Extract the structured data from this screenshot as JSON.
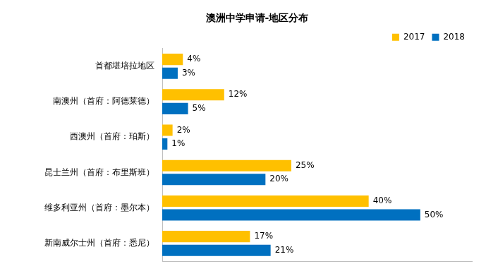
{
  "chart_data": {
    "type": "bar",
    "title": "澳洲中学申请-地区分布",
    "orientation": "horizontal",
    "categories": [
      "首都堪培拉地区",
      "南澳州（首府：阿德莱德）",
      "西澳州（首府：珀斯）",
      "昆士兰州（首府：布里斯班）",
      "维多利亚州（首府：墨尔本）",
      "新南威尔士州（首府：悉尼）"
    ],
    "series": [
      {
        "name": "2017",
        "color": "#FFC000",
        "values": [
          4,
          12,
          2,
          25,
          40,
          17
        ],
        "value_labels": [
          "4%",
          "12%",
          "2%",
          "25%",
          "40%",
          "17%"
        ]
      },
      {
        "name": "2018",
        "color": "#0070C0",
        "values": [
          3,
          5,
          1,
          20,
          50,
          21
        ],
        "value_labels": [
          "3%",
          "5%",
          "1%",
          "20%",
          "50%",
          "21%"
        ]
      }
    ],
    "xlim": [
      0,
      60
    ],
    "data_labels": true,
    "legend": "top-right",
    "tick_labels": "y",
    "grid": false
  }
}
